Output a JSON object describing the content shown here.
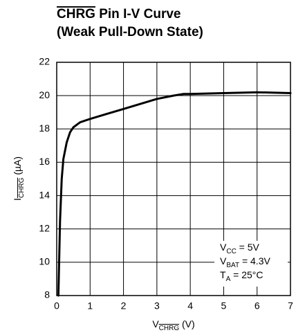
{
  "chart_data": {
    "type": "line",
    "title_lines": [
      [
        {
          "text": "CHRG",
          "overline": true
        },
        {
          "text": " Pin I-V Curve"
        }
      ],
      [
        {
          "text": "(Weak Pull-Down State)"
        }
      ]
    ],
    "x_label": {
      "main": "V",
      "sub": "CHRG",
      "unit": " (V)"
    },
    "y_label": {
      "main": "I",
      "sub": "CHRG",
      "unit": " (µA)"
    },
    "annotations": [
      {
        "main": "V",
        "sub": "CC",
        "rest": " = 5V"
      },
      {
        "main": "V",
        "sub": "BAT",
        "rest": " = 4.3V"
      },
      {
        "main": "T",
        "sub": "A",
        "rest": " = 25°C"
      }
    ],
    "x": [
      0.05,
      0.1,
      0.15,
      0.2,
      0.3,
      0.4,
      0.5,
      0.7,
      1,
      1.5,
      2,
      2.5,
      3,
      3.5,
      3.8,
      4,
      5,
      6,
      7
    ],
    "series": [
      {
        "color": "#000000",
        "values": [
          8,
          12.5,
          15,
          16.2,
          17.2,
          17.8,
          18.1,
          18.4,
          18.6,
          18.9,
          19.2,
          19.5,
          19.8,
          20.0,
          20.1,
          20.1,
          20.15,
          20.2,
          20.15
        ]
      }
    ],
    "xlim": [
      0,
      7
    ],
    "xticks": [
      0,
      1,
      2,
      3,
      4,
      5,
      6,
      7
    ],
    "ylim": [
      8,
      22
    ],
    "yticks": [
      8,
      10,
      12,
      14,
      16,
      18,
      20,
      22
    ],
    "grid": true
  }
}
